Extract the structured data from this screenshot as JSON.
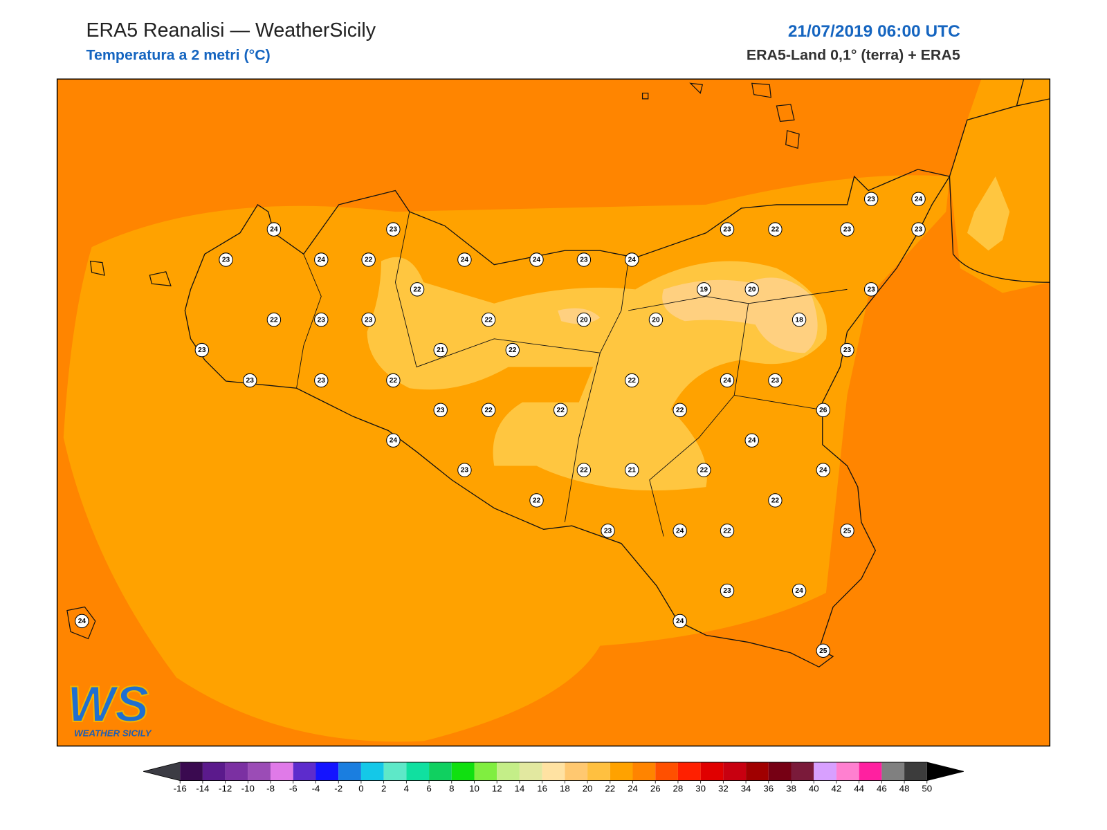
{
  "header": {
    "title": "ERA5 Reanalisi — WeatherSicily",
    "subtitle": "Temperatura a 2 metri (°C)",
    "datetime": "21/07/2019 06:00 UTC",
    "source": "ERA5-Land 0,1° (terra) + ERA5"
  },
  "stations": [
    24,
    23,
    23,
    24,
    22,
    24,
    24,
    23,
    24,
    23,
    22,
    23,
    23,
    24,
    23,
    22,
    19,
    20,
    23,
    22,
    23,
    23,
    22,
    20,
    20,
    18,
    23,
    21,
    22,
    23,
    23,
    23,
    22,
    22,
    24,
    23,
    23,
    22,
    22,
    22,
    26,
    24,
    24,
    23,
    22,
    21,
    22,
    24,
    22,
    22,
    23,
    24,
    22,
    25,
    23,
    24,
    24,
    25,
    24
  ],
  "colorbar": {
    "ticks": [
      -16,
      -14,
      -12,
      -10,
      -8,
      -6,
      -4,
      -2,
      0,
      2,
      4,
      6,
      8,
      10,
      12,
      14,
      16,
      18,
      20,
      22,
      24,
      26,
      28,
      30,
      32,
      34,
      36,
      38,
      40,
      42,
      44,
      46,
      48,
      50
    ],
    "colors": [
      "#3a0a50",
      "#5b1a8c",
      "#7b30a2",
      "#9b4cb6",
      "#e07ae8",
      "#5d2ccc",
      "#1414ff",
      "#1a7ee0",
      "#14c8e8",
      "#5ee8c8",
      "#10e0a0",
      "#10d060",
      "#10e010",
      "#80ee40",
      "#c4ee88",
      "#e2e8a0",
      "#ffe2a2",
      "#ffc870",
      "#ffc040",
      "#ffa200",
      "#ff8400",
      "#ff5000",
      "#ff2000",
      "#e00000",
      "#c80010",
      "#a00000",
      "#760014",
      "#7a1a3a",
      "#d8a0ff",
      "#ff80d0",
      "#ff20a0",
      "#808080",
      "#3c3c3c"
    ],
    "under_color": "#3c3c44",
    "over_color": "#000000"
  },
  "logo": {
    "text": "WS",
    "caption": "WEATHER SICILY"
  }
}
